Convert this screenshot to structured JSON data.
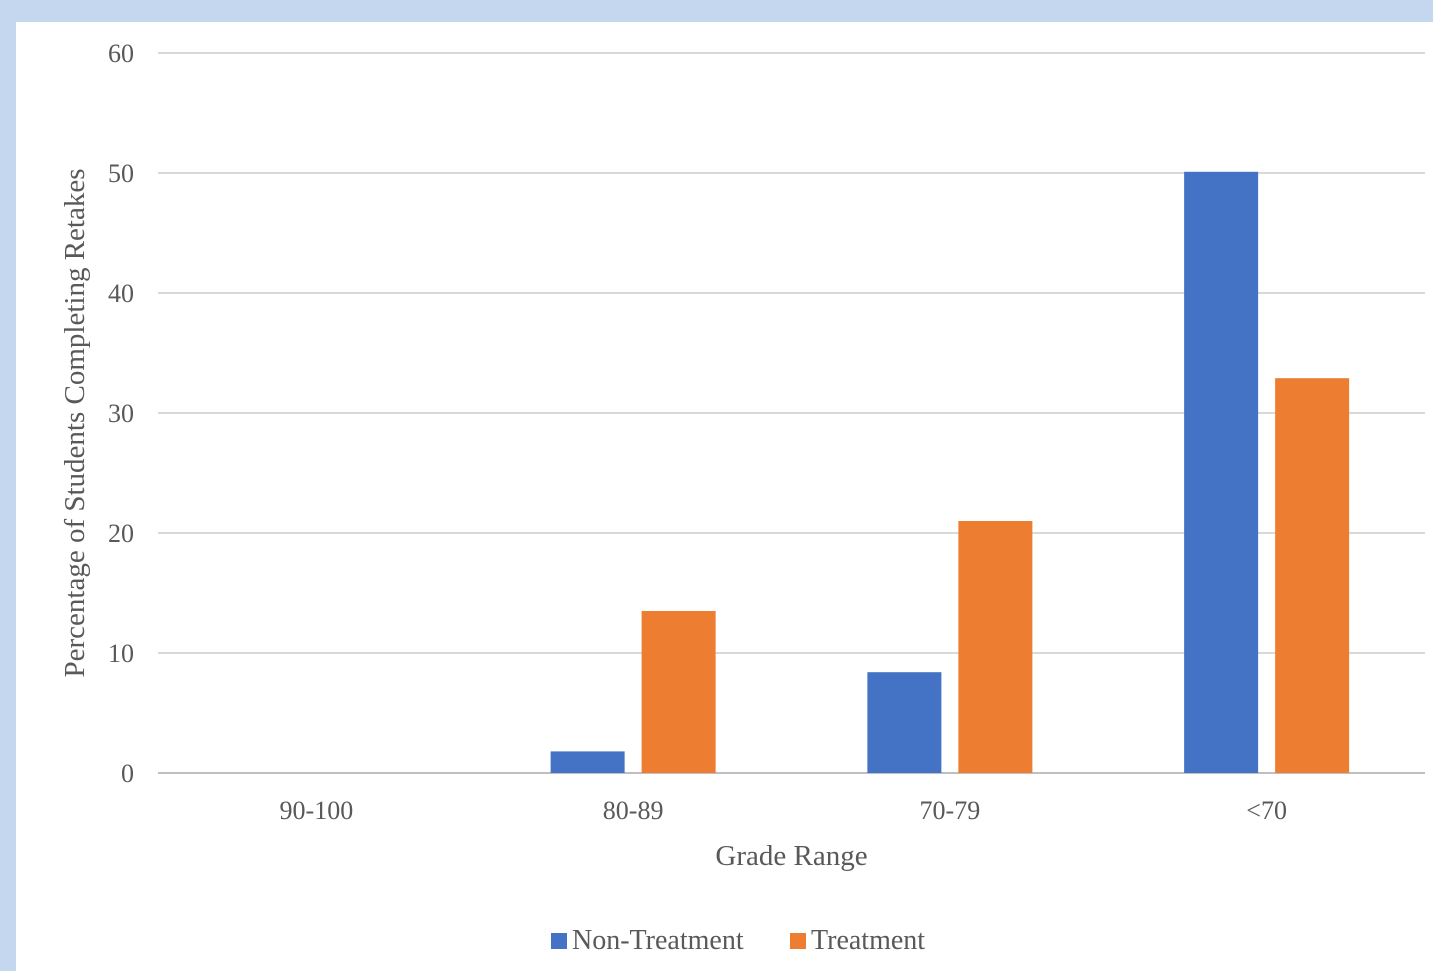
{
  "chart_data": {
    "type": "bar",
    "title": "",
    "xlabel": "Grade Range",
    "ylabel": "Percentage of Students Completing Retakes",
    "categories": [
      "90-100",
      "80-89",
      "70-79",
      "<70"
    ],
    "series": [
      {
        "name": "Non-Treatment",
        "color": "#4472c4",
        "values": [
          0,
          1.8,
          8.4,
          50.1
        ]
      },
      {
        "name": "Treatment",
        "color": "#ed7d31",
        "values": [
          0,
          13.5,
          21.0,
          32.9
        ]
      }
    ],
    "ylim": [
      0,
      60
    ],
    "yticks": [
      "0",
      "10",
      "20",
      "30",
      "40",
      "50",
      "60"
    ],
    "grid": true,
    "legend_position": "bottom"
  }
}
